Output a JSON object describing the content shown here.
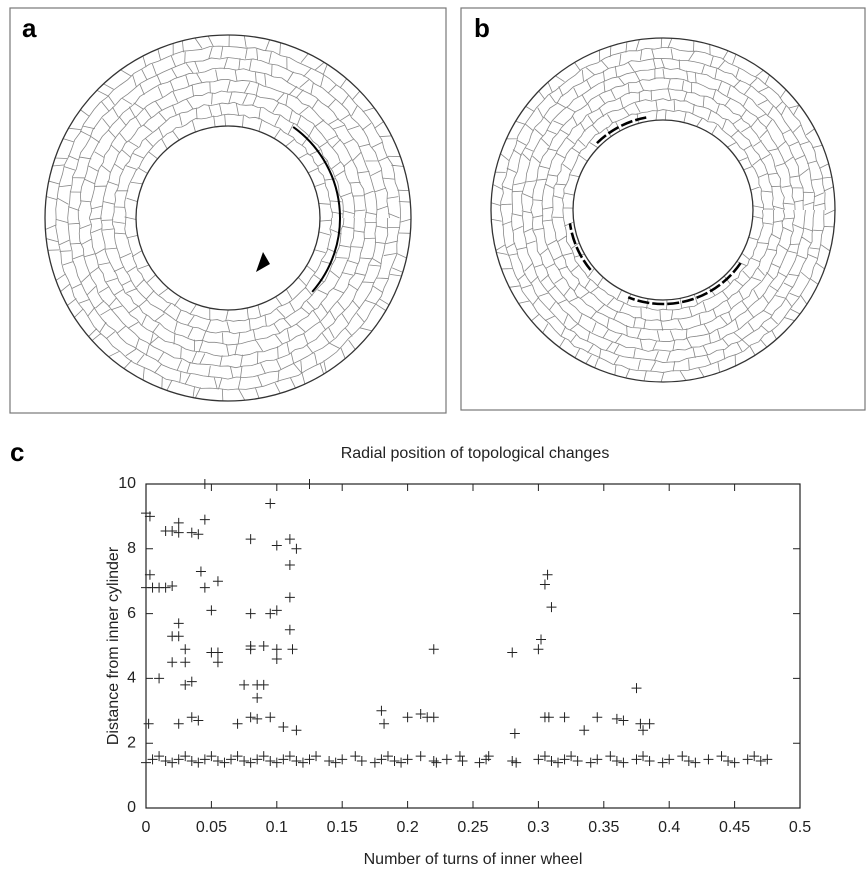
{
  "panel_labels": [
    "a",
    "b",
    "c"
  ],
  "chart_data": {
    "type": "scatter",
    "title": "Radial position of topological changes",
    "xlabel": "Number of turns of inner wheel",
    "ylabel": "Distance from inner cylinder",
    "marker": "+",
    "color": "#222",
    "xlim": [
      0,
      0.5
    ],
    "ylim": [
      0,
      10
    ],
    "xticks": [
      0,
      0.05,
      0.1,
      0.15,
      0.2,
      0.25,
      0.3,
      0.35,
      0.4,
      0.45,
      0.5
    ],
    "yticks": [
      0,
      2,
      4,
      6,
      8,
      10
    ],
    "x": [
      0.0,
      0.005,
      0.01,
      0.015,
      0.02,
      0.025,
      0.03,
      0.035,
      0.04,
      0.045,
      0.05,
      0.055,
      0.06,
      0.065,
      0.07,
      0.075,
      0.08,
      0.085,
      0.09,
      0.095,
      0.1,
      0.105,
      0.11,
      0.115,
      0.12,
      0.125,
      0.13,
      0.14,
      0.145,
      0.15,
      0.16,
      0.165,
      0.175,
      0.18,
      0.185,
      0.19,
      0.195,
      0.2,
      0.21,
      0.22,
      0.222,
      0.23,
      0.24,
      0.242,
      0.255,
      0.26,
      0.262,
      0.28,
      0.283,
      0.3,
      0.305,
      0.31,
      0.315,
      0.32,
      0.325,
      0.33,
      0.34,
      0.345,
      0.355,
      0.36,
      0.365,
      0.375,
      0.38,
      0.385,
      0.395,
      0.4,
      0.41,
      0.415,
      0.42,
      0.43,
      0.44,
      0.445,
      0.45,
      0.46,
      0.465,
      0.47,
      0.475,
      0,
      0.003,
      0.0,
      0.005,
      0.01,
      0.015,
      0.02,
      0.003,
      0.002,
      0.015,
      0.02,
      0.025,
      0.035,
      0.04,
      0.042,
      0.045,
      0.045,
      0.025,
      0.02,
      0.025,
      0.025,
      0.03,
      0.03,
      0.035,
      0.03,
      0.02,
      0.01,
      0.045,
      0.05,
      0.05,
      0.055,
      0.055,
      0.055,
      0.025,
      0.035,
      0.04,
      0.07,
      0.075,
      0.08,
      0.085,
      0.08,
      0.08,
      0.08,
      0.08,
      0.085,
      0.09,
      0.095,
      0.095,
      0.1,
      0.1,
      0.1,
      0.09,
      0.1,
      0.105,
      0.11,
      0.11,
      0.11,
      0.11,
      0.112,
      0.115,
      0.115,
      0.125,
      0.085,
      0.095,
      0.18,
      0.182,
      0.2,
      0.21,
      0.215,
      0.22,
      0.22,
      0.28,
      0.282,
      0.3,
      0.302,
      0.305,
      0.307,
      0.31,
      0.308,
      0.305,
      0.32,
      0.335,
      0.345,
      0.36,
      0.365,
      0.375,
      0.378,
      0.38,
      0.385
    ],
    "values": [
      1.4,
      1.5,
      1.6,
      1.45,
      1.4,
      1.5,
      1.6,
      1.45,
      1.4,
      1.5,
      1.6,
      1.45,
      1.4,
      1.5,
      1.6,
      1.45,
      1.4,
      1.5,
      1.6,
      1.45,
      1.4,
      1.5,
      1.6,
      1.45,
      1.4,
      1.5,
      1.6,
      1.45,
      1.4,
      1.5,
      1.6,
      1.45,
      1.4,
      1.5,
      1.6,
      1.45,
      1.4,
      1.5,
      1.6,
      1.45,
      1.4,
      1.5,
      1.6,
      1.45,
      1.4,
      1.5,
      1.6,
      1.45,
      1.4,
      1.5,
      1.6,
      1.45,
      1.4,
      1.5,
      1.6,
      1.45,
      1.4,
      1.5,
      1.6,
      1.45,
      1.4,
      1.5,
      1.6,
      1.45,
      1.4,
      1.5,
      1.6,
      1.45,
      1.4,
      1.5,
      1.6,
      1.45,
      1.4,
      1.5,
      1.6,
      1.45,
      1.5,
      9.1,
      9.0,
      6.8,
      6.8,
      6.8,
      6.8,
      6.85,
      7.2,
      2.6,
      8.55,
      8.55,
      8.5,
      8.5,
      8.45,
      7.3,
      8.9,
      10,
      8.8,
      5.3,
      5.3,
      5.7,
      4.9,
      4.5,
      3.9,
      3.8,
      4.5,
      4.0,
      6.8,
      4.8,
      6.1,
      4.8,
      4.5,
      7.0,
      2.6,
      2.8,
      2.7,
      2.6,
      3.8,
      2.8,
      2.75,
      5.0,
      4.9,
      6.0,
      8.3,
      3.8,
      5.0,
      9.4,
      6.0,
      6.1,
      8.1,
      4.6,
      3.8,
      4.9,
      2.5,
      8.3,
      7.5,
      6.5,
      5.5,
      4.9,
      8.0,
      2.4,
      10,
      3.4,
      2.8,
      3.0,
      2.6,
      2.8,
      2.9,
      2.8,
      4.9,
      2.8,
      4.8,
      2.3,
      4.9,
      5.2,
      6.9,
      7.2,
      6.2,
      2.8,
      2.8,
      2.8,
      2.4,
      2.8,
      2.75,
      2.7,
      3.7,
      2.6,
      2.4,
      2.6
    ]
  }
}
